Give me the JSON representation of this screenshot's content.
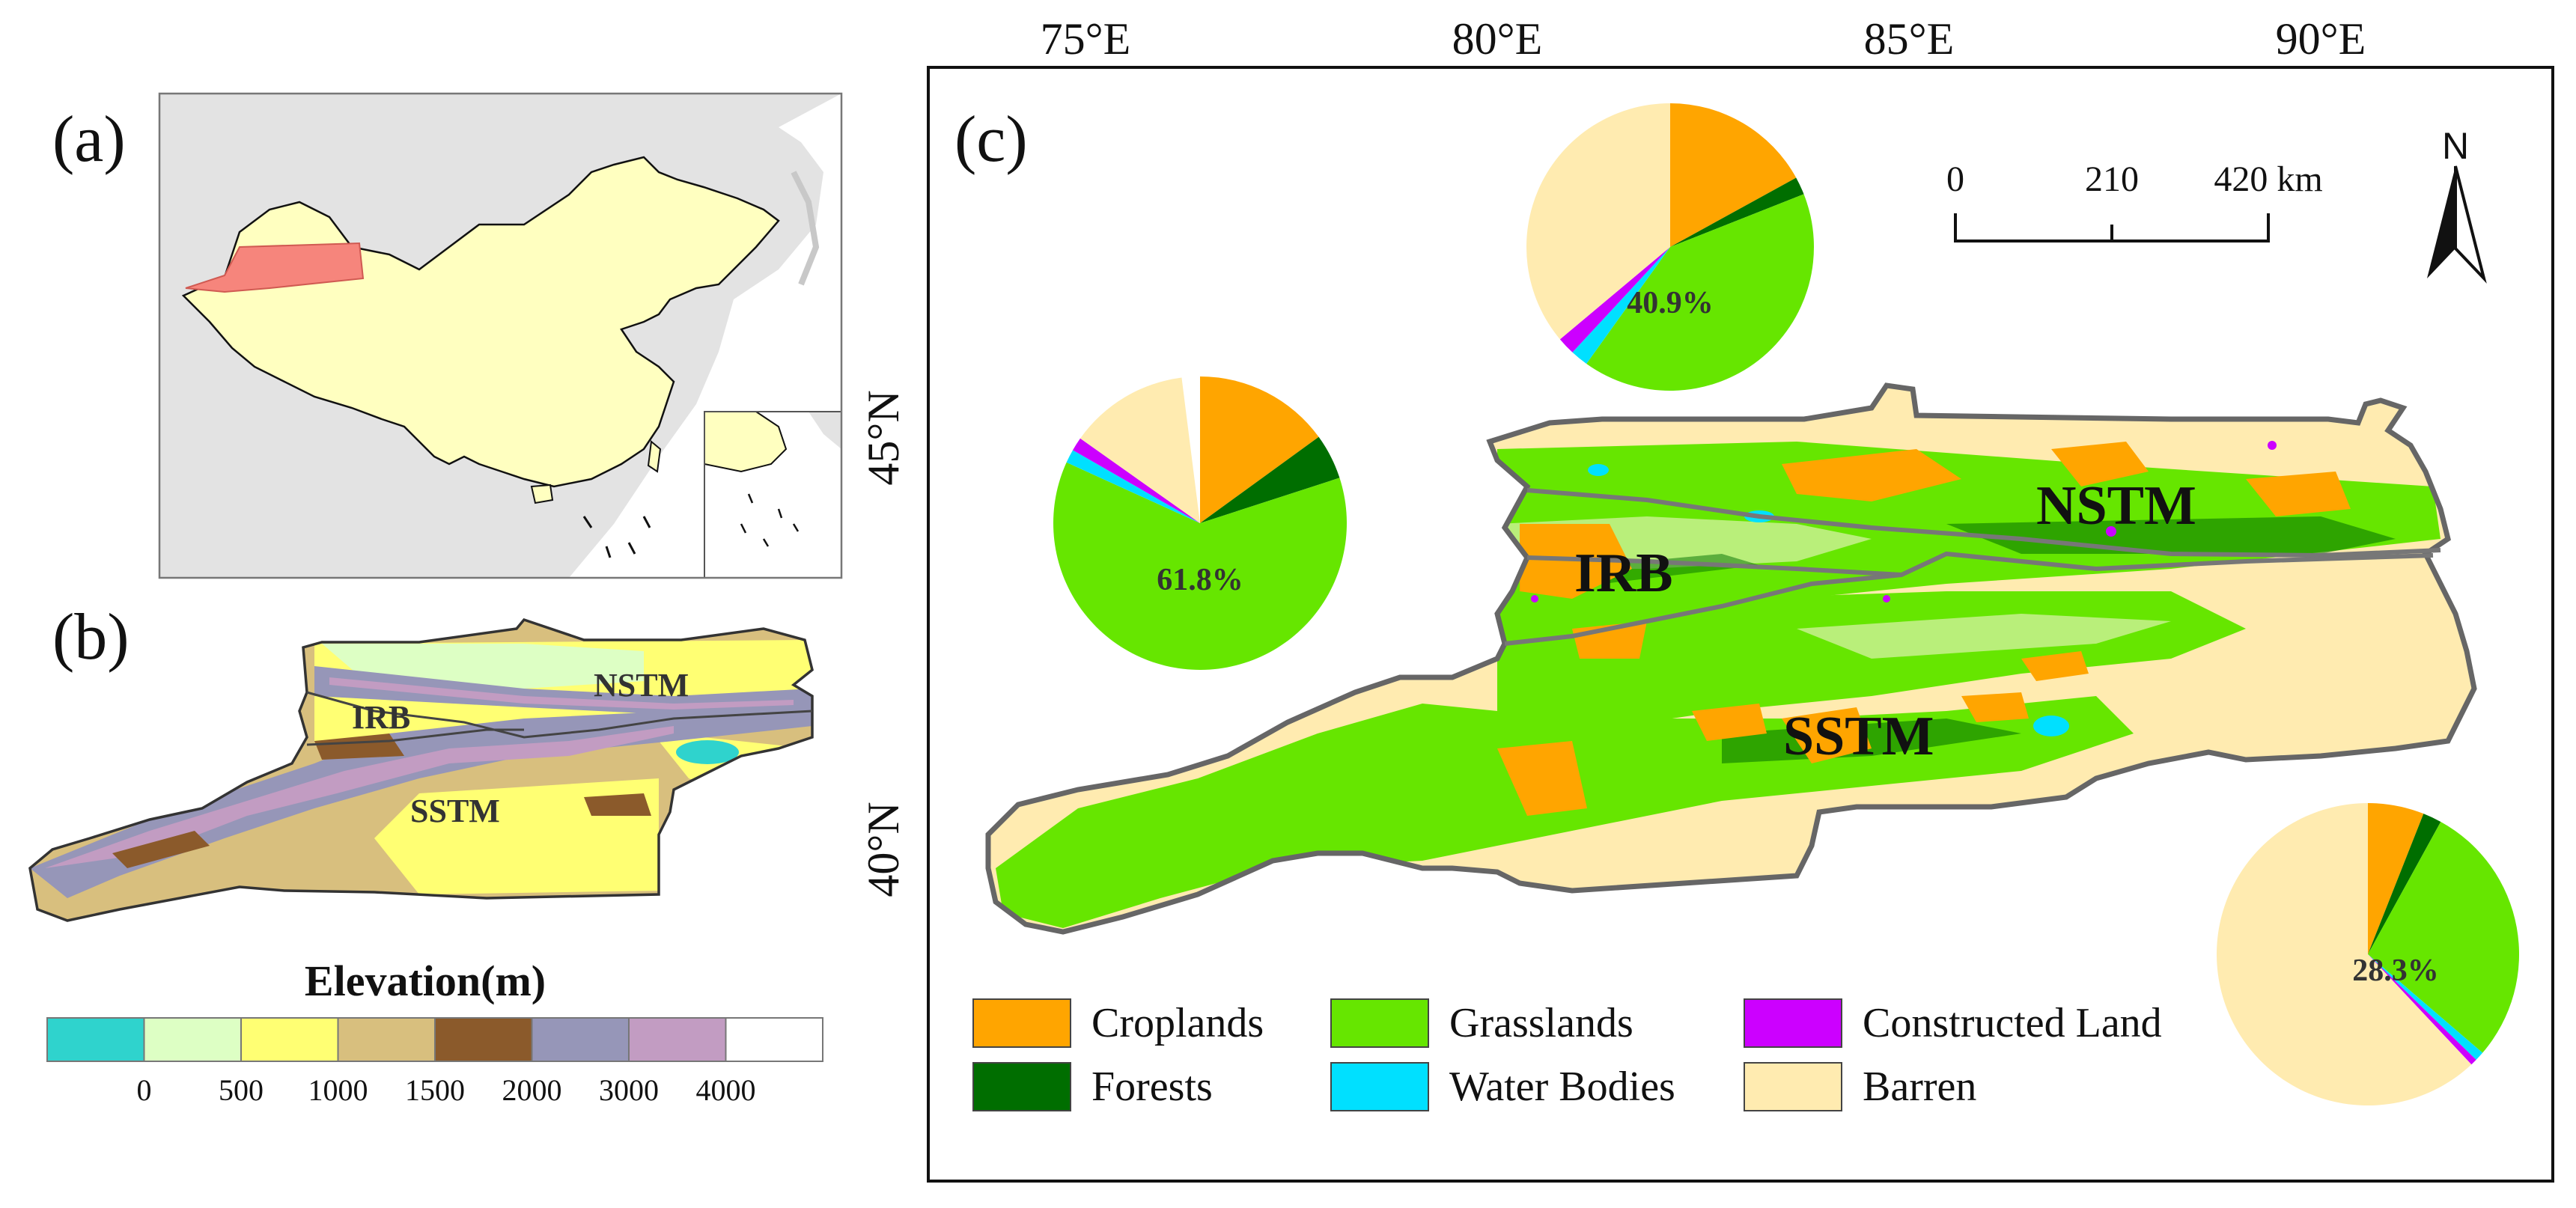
{
  "panel_a": {
    "label": "(a)"
  },
  "panel_b": {
    "label": "(b)",
    "regions": {
      "irb": "IRB",
      "nstm": "NSTM",
      "sstm": "SSTM"
    },
    "legend_title": "Elevation(m)",
    "legend_colors": [
      "#2fd3cd",
      "#ddffc4",
      "#ffff73",
      "#d8bf7e",
      "#8b5a2b",
      "#9696b8",
      "#c29cc2",
      "#ffffff"
    ],
    "legend_ticks": [
      "0",
      "500",
      "1000",
      "1500",
      "2000",
      "3000",
      "4000"
    ]
  },
  "panel_c": {
    "label": "(c)",
    "lon_labels": [
      "75°E",
      "80°E",
      "85°E",
      "90°E"
    ],
    "lat_labels": [
      "45°N",
      "40°N"
    ],
    "regions": {
      "irb": "IRB",
      "nstm": "NSTM",
      "sstm": "SSTM"
    },
    "scale_bar": {
      "ticks": [
        "0",
        "210",
        "420 km"
      ]
    },
    "north_arrow": "N",
    "legend": [
      {
        "name": "Croplands",
        "color": "#ffa500"
      },
      {
        "name": "Grasslands",
        "color": "#66e600"
      },
      {
        "name": "Constructed Land",
        "color": "#cc00ff"
      },
      {
        "name": "Forests",
        "color": "#006e00"
      },
      {
        "name": "Water Bodies",
        "color": "#00e0ff"
      },
      {
        "name": "Barren",
        "color": "#ffebb0"
      }
    ],
    "pies": {
      "irb": {
        "label": "61.8%",
        "fractions": {
          "Croplands": 0.15,
          "Forests": 0.05,
          "Grasslands": 0.618,
          "Water Bodies": 0.015,
          "Constructed Land": 0.015,
          "Barren": 0.132
        }
      },
      "nstm": {
        "label": "40.9%",
        "fractions": {
          "Croplands": 0.17,
          "Forests": 0.02,
          "Grasslands": 0.409,
          "Water Bodies": 0.02,
          "Constructed Land": 0.02,
          "Barren": 0.361
        }
      },
      "sstm": {
        "label": "28.3%",
        "fractions": {
          "Croplands": 0.06,
          "Forests": 0.02,
          "Grasslands": 0.283,
          "Water Bodies": 0.01,
          "Constructed Land": 0.007,
          "Barren": 0.62
        }
      }
    }
  }
}
